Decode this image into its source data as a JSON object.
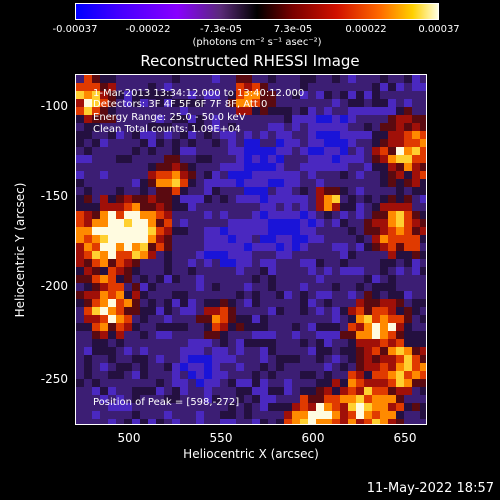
{
  "colorbar": {
    "ticks": [
      "-0.00037",
      "-0.00022",
      "-7.3e-05",
      "7.3e-05",
      "0.00022",
      "0.00037"
    ],
    "unit": "(photons cm⁻² s⁻¹ asec⁻²)"
  },
  "title": "Reconstructed RHESSI Image",
  "info": {
    "time": "1-Mar-2013 13:34:12.000 to 13:40:12.000",
    "detectors": "Detectors: 3F 4F 5F 6F 7F 8F, Att 0",
    "energy": "Energy Range: 25.0 - 50.0 keV",
    "clean": "Clean     Total counts: 1.09E+04"
  },
  "peak": "Position of Peak = [598,-272]",
  "axes": {
    "xlabel": "Heliocentric X (arcsec)",
    "ylabel": "Heliocentric Y (arcsec)",
    "xticks": [
      "500",
      "550",
      "600",
      "650"
    ],
    "yticks": [
      "-100",
      "-150",
      "-200",
      "-250"
    ]
  },
  "timestamp": "11-May-2022 18:57"
}
